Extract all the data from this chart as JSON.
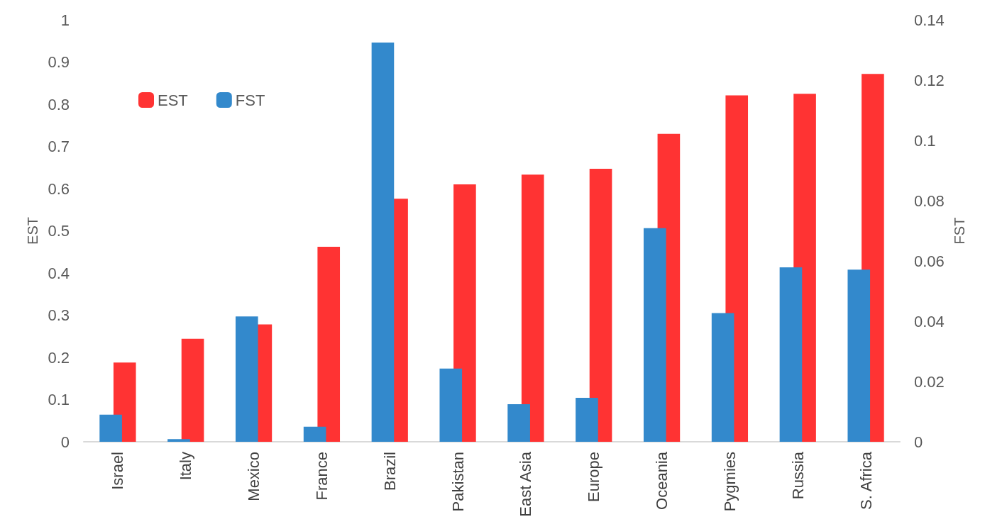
{
  "chart_data": {
    "type": "bar",
    "categories": [
      "Israel",
      "Italy",
      "Mexico",
      "France",
      "Brazil",
      "Pakistan",
      "East Asia",
      "Europe",
      "Oceania",
      "Pygmies",
      "Russia",
      "S. Africa"
    ],
    "series": [
      {
        "name": "EST",
        "color": "#ff3333",
        "values": [
          0.188,
          0.244,
          0.278,
          0.462,
          0.576,
          0.61,
          0.633,
          0.647,
          0.73,
          0.821,
          0.825,
          0.872
        ]
      },
      {
        "name": "FST",
        "color": "#3389cc",
        "axis": "y2",
        "values": [
          0.009,
          0.0009,
          0.0416,
          0.005,
          0.1325,
          0.0243,
          0.0125,
          0.0146,
          0.0709,
          0.0427,
          0.0579,
          0.0571
        ]
      }
    ],
    "ylabel": "EST",
    "y2label": "FST",
    "ylim": [
      0,
      1
    ],
    "yticks": [
      0,
      0.1,
      0.2,
      0.3,
      0.4,
      0.5,
      0.6,
      0.7,
      0.8,
      0.9,
      1
    ],
    "y2lim": [
      0,
      0.14
    ],
    "y2ticks": [
      0,
      0.02,
      0.04,
      0.06,
      0.08,
      0.1,
      0.12,
      0.14
    ],
    "legend": "top left",
    "grid": false
  }
}
